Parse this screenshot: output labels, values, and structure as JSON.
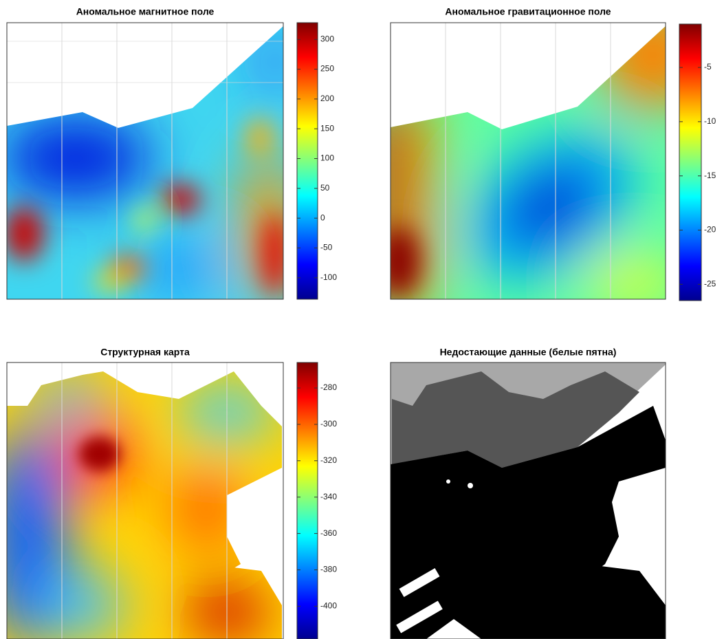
{
  "chart_data": [
    {
      "type": "heatmap",
      "title": "Аномальное магнитное поле",
      "colormap": "jet",
      "zlim": [
        -136,
        328
      ],
      "zticks": [
        -100,
        -50,
        0,
        50,
        100,
        150,
        200,
        250,
        300
      ]
    },
    {
      "type": "heatmap",
      "title": "Аномальное гравитационное поле",
      "colormap": "jet",
      "zlim": [
        -26.5,
        -1
      ],
      "zticks": [
        -25,
        -20,
        -15,
        -10,
        -5
      ]
    },
    {
      "type": "heatmap",
      "title": "Структурная карта",
      "colormap": "jet",
      "zlim": [
        -418,
        -266
      ],
      "zticks": [
        -400,
        -380,
        -360,
        -340,
        -320,
        -300,
        -280
      ]
    },
    {
      "type": "heatmap",
      "title": "Недостающие данные (белые пятна)",
      "colormap": "gray"
    }
  ]
}
